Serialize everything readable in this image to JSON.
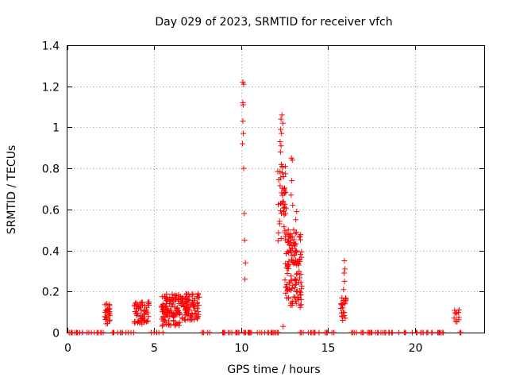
{
  "chart_data": {
    "type": "scatter",
    "title": "Day 029 of 2023, SRMTID for receiver vfch",
    "xlabel": "GPS time / hours",
    "ylabel": "SRMTID / TECUs",
    "xlim": [
      0,
      24
    ],
    "ylim": [
      0,
      1.4
    ],
    "x_ticks": [
      0,
      5,
      10,
      15,
      20
    ],
    "y_ticks": [
      0,
      0.2,
      0.4,
      0.6,
      0.8,
      1.0,
      1.2,
      1.4
    ],
    "x_tick_labels": [
      "0",
      "5",
      "10",
      "15",
      "20"
    ],
    "y_tick_labels": [
      "0",
      "0.2",
      "0.4",
      "0.6",
      "0.8",
      "1",
      "1.2",
      "1.4"
    ],
    "grid": true,
    "marker": "+",
    "color": "#ff0000",
    "clusters": [
      {
        "x0": 0.05,
        "x1": 2.2,
        "y0": 0.0,
        "y1": 0.0,
        "n": 24
      },
      {
        "x0": 2.15,
        "x1": 2.45,
        "y0": 0.04,
        "y1": 0.14,
        "n": 28
      },
      {
        "x0": 2.6,
        "x1": 3.9,
        "y0": 0.0,
        "y1": 0.0,
        "n": 12
      },
      {
        "x0": 3.85,
        "x1": 4.7,
        "y0": 0.04,
        "y1": 0.15,
        "n": 60
      },
      {
        "x0": 4.8,
        "x1": 5.5,
        "y0": 0.0,
        "y1": 0.0,
        "n": 5
      },
      {
        "x0": 5.4,
        "x1": 6.5,
        "y0": 0.03,
        "y1": 0.19,
        "n": 110
      },
      {
        "x0": 6.5,
        "x1": 7.6,
        "y0": 0.06,
        "y1": 0.19,
        "n": 90
      },
      {
        "x0": 7.7,
        "x1": 9.9,
        "y0": 0.0,
        "y1": 0.0,
        "n": 18
      },
      {
        "x0": 10.1,
        "x1": 10.3,
        "y0": 0.0,
        "y1": 0.0,
        "n": 3
      },
      {
        "x0": 10.4,
        "x1": 12.2,
        "y0": 0.0,
        "y1": 0.0,
        "n": 20
      },
      {
        "x0": 12.1,
        "x1": 12.6,
        "y0": 0.44,
        "y1": 0.82,
        "n": 40
      },
      {
        "x0": 12.5,
        "x1": 13.5,
        "y0": 0.12,
        "y1": 0.5,
        "n": 130
      },
      {
        "x0": 13.4,
        "x1": 15.6,
        "y0": 0.0,
        "y1": 0.0,
        "n": 20
      },
      {
        "x0": 15.7,
        "x1": 16.05,
        "y0": 0.07,
        "y1": 0.17,
        "n": 22
      },
      {
        "x0": 16.2,
        "x1": 22.0,
        "y0": 0.0,
        "y1": 0.0,
        "n": 48
      },
      {
        "x0": 22.2,
        "x1": 22.6,
        "y0": 0.04,
        "y1": 0.11,
        "n": 10
      },
      {
        "x0": 22.6,
        "x1": 22.9,
        "y0": 0.0,
        "y1": 0.0,
        "n": 3
      }
    ],
    "points": [
      {
        "x": 10.1,
        "y": 1.22
      },
      {
        "x": 10.15,
        "y": 1.21
      },
      {
        "x": 10.1,
        "y": 1.12
      },
      {
        "x": 10.12,
        "y": 1.11
      },
      {
        "x": 10.1,
        "y": 1.03
      },
      {
        "x": 10.13,
        "y": 0.97
      },
      {
        "x": 10.08,
        "y": 0.92
      },
      {
        "x": 10.15,
        "y": 0.8
      },
      {
        "x": 10.18,
        "y": 0.58
      },
      {
        "x": 10.2,
        "y": 0.45
      },
      {
        "x": 10.25,
        "y": 0.34
      },
      {
        "x": 10.22,
        "y": 0.26
      },
      {
        "x": 12.3,
        "y": 1.04
      },
      {
        "x": 12.35,
        "y": 1.06
      },
      {
        "x": 12.4,
        "y": 1.02
      },
      {
        "x": 12.28,
        "y": 0.99
      },
      {
        "x": 12.33,
        "y": 0.97
      },
      {
        "x": 12.25,
        "y": 0.93
      },
      {
        "x": 12.3,
        "y": 0.91
      },
      {
        "x": 12.27,
        "y": 0.88
      },
      {
        "x": 12.38,
        "y": 0.81
      },
      {
        "x": 12.45,
        "y": 0.76
      },
      {
        "x": 12.48,
        "y": 0.7
      },
      {
        "x": 12.5,
        "y": 0.61
      },
      {
        "x": 12.55,
        "y": 0.58
      },
      {
        "x": 12.42,
        "y": 0.03
      },
      {
        "x": 12.9,
        "y": 0.85
      },
      {
        "x": 12.95,
        "y": 0.84
      },
      {
        "x": 12.92,
        "y": 0.74
      },
      {
        "x": 12.88,
        "y": 0.67
      },
      {
        "x": 12.97,
        "y": 0.62
      },
      {
        "x": 13.2,
        "y": 0.59
      },
      {
        "x": 13.15,
        "y": 0.55
      },
      {
        "x": 13.1,
        "y": 0.43
      },
      {
        "x": 15.95,
        "y": 0.35
      },
      {
        "x": 15.98,
        "y": 0.31
      },
      {
        "x": 15.93,
        "y": 0.29
      },
      {
        "x": 15.96,
        "y": 0.25
      },
      {
        "x": 15.9,
        "y": 0.21
      },
      {
        "x": 15.85,
        "y": 0.06
      },
      {
        "x": 22.55,
        "y": 0.11
      }
    ]
  }
}
